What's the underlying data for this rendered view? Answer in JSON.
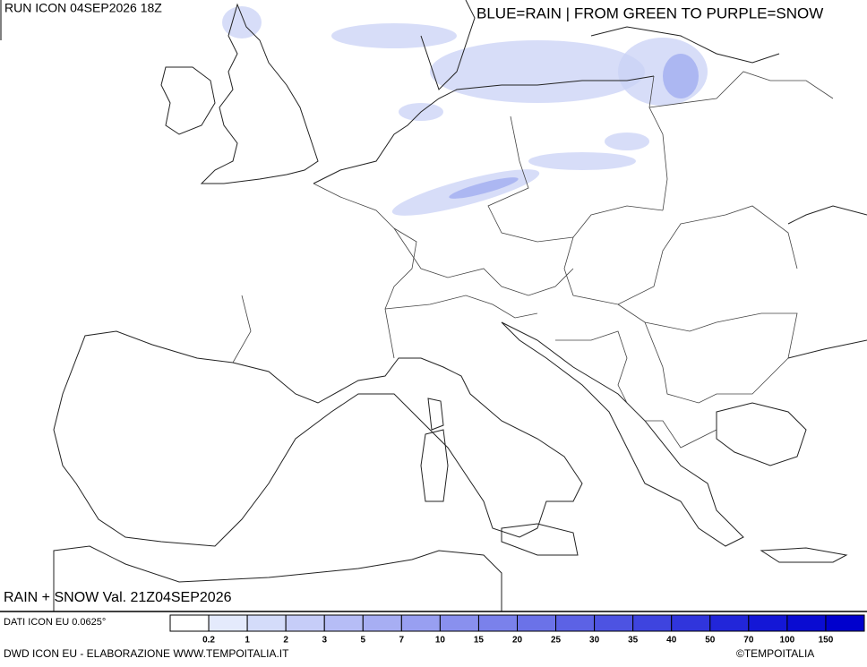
{
  "header": {
    "run": "RUN ICON 04SEP2026 18Z",
    "legend_note": "BLUE=RAIN | FROM GREEN TO PURPLE=SNOW"
  },
  "map": {
    "title": "RAIN + SNOW Val. 21Z04SEP2026"
  },
  "colorbar": {
    "source": "DATI ICON EU 0.0625°",
    "labels": [
      0.2,
      1,
      2,
      3,
      5,
      7,
      10,
      15,
      20,
      25,
      30,
      35,
      40,
      50,
      70,
      100,
      150
    ],
    "colors": [
      "#ffffff",
      "#e4eafc",
      "#d4dcfa",
      "#c6cdf8",
      "#b6bdf6",
      "#a7aef3",
      "#989ff1",
      "#8990ee",
      "#7a81eb",
      "#6b72e8",
      "#5c62e5",
      "#4d53e2",
      "#3e44df",
      "#3035dc",
      "#2226d9",
      "#1417d6",
      "#0a0cd2",
      "#0000cd"
    ]
  },
  "footer": {
    "credit": "DWD ICON EU - ELABORAZIONE WWW.TEMPOITALIA.IT",
    "copyright": "©TEMPOITALIA"
  }
}
